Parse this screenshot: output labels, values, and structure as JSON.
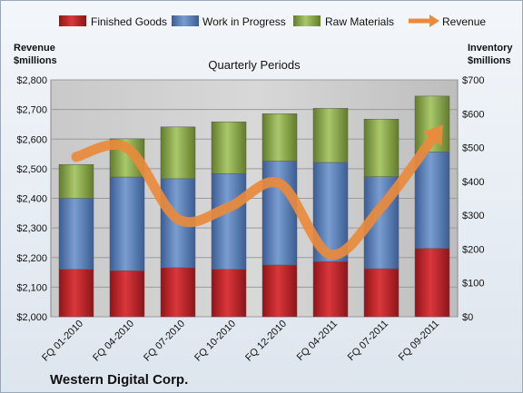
{
  "chart_data": {
    "type": "bar",
    "stacked": true,
    "subtitle": "Quarterly Periods",
    "company": "Western Digital Corp.",
    "left_axis_label": [
      "Revenue",
      "$millions"
    ],
    "right_axis_label": [
      "Inventory",
      "$millions"
    ],
    "categories": [
      "FQ 01-2010",
      "FQ 04-2010",
      "FQ 07-2010",
      "FQ 10-2010",
      "FQ 12-2010",
      "FQ 04-2011",
      "FQ 07-2011",
      "FQ 09-2011"
    ],
    "series": [
      {
        "name": "Finished Goods",
        "axis": "right",
        "values": [
          140,
          136,
          145,
          140,
          153,
          163,
          142,
          202
        ],
        "color": "#c0262b"
      },
      {
        "name": "Work in Progress",
        "axis": "right",
        "values": [
          210,
          277,
          263,
          283,
          307,
          293,
          272,
          285
        ],
        "color": "#5a7fb8"
      },
      {
        "name": "Raw Materials",
        "axis": "right",
        "values": [
          100,
          113,
          153,
          153,
          140,
          160,
          170,
          165
        ],
        "color": "#8fae4b"
      },
      {
        "name": "Revenue",
        "type": "line",
        "axis": "left",
        "values": [
          2540,
          2570,
          2330,
          2370,
          2450,
          2210,
          2370,
          2600
        ],
        "color": "#e98a3c"
      }
    ],
    "left_ylim": [
      2000,
      2800
    ],
    "left_ticks": [
      "$2,000",
      "$2,100",
      "$2,200",
      "$2,300",
      "$2,400",
      "$2,500",
      "$2,600",
      "$2,700",
      "$2,800"
    ],
    "right_ylim": [
      0,
      700
    ],
    "right_ticks": [
      "$0",
      "$100",
      "$200",
      "$300",
      "$400",
      "$500",
      "$600",
      "$700"
    ],
    "legend_placement": "top",
    "grid": true
  }
}
